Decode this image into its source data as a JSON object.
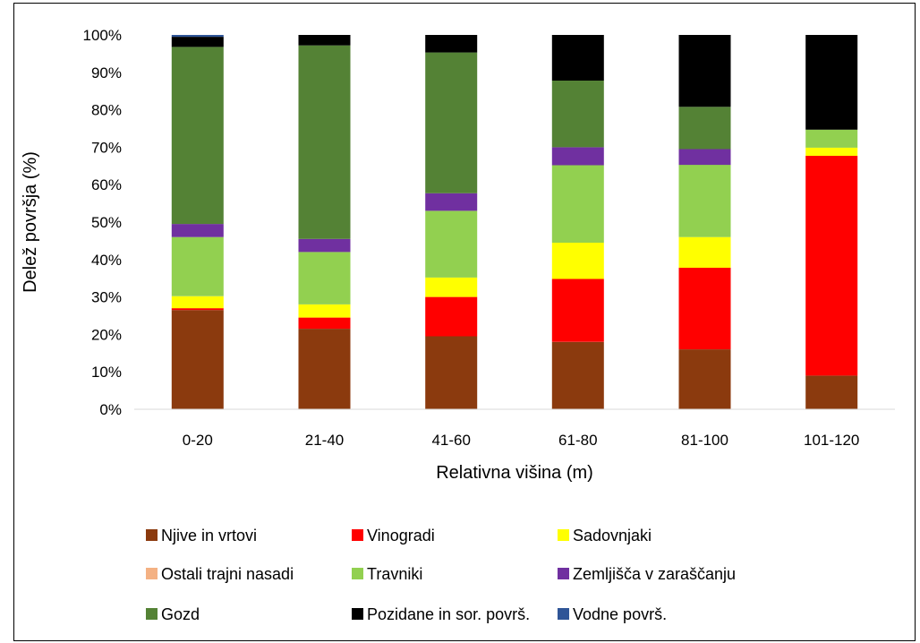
{
  "chart_data": {
    "type": "bar",
    "stacked": true,
    "percent": true,
    "title": "",
    "xlabel": "Relativna višina (m)",
    "ylabel": "Delež površja (%)",
    "ylim": [
      0,
      100
    ],
    "y_ticks": [
      "0%",
      "10%",
      "20%",
      "30%",
      "40%",
      "50%",
      "60%",
      "70%",
      "80%",
      "90%",
      "100%"
    ],
    "grid": false,
    "legend_position": "bottom",
    "categories": [
      "0-20",
      "21-40",
      "41-60",
      "61-80",
      "81-100",
      "101-120"
    ],
    "series": [
      {
        "name": "Njive in vrtovi",
        "color": "#8B3A0E",
        "values": [
          26.5,
          21.5,
          19.5,
          18.0,
          16.0,
          9.0
        ]
      },
      {
        "name": "Vinogradi",
        "color": "#FF0000",
        "values": [
          0.5,
          3.0,
          10.5,
          16.8,
          21.8,
          58.7
        ]
      },
      {
        "name": "Sadovnjaki",
        "color": "#FFFF00",
        "values": [
          3.2,
          3.5,
          5.2,
          9.7,
          8.2,
          2.2
        ]
      },
      {
        "name": "Ostali trajni nasadi",
        "color": "#F4B183",
        "values": [
          0,
          0,
          0,
          0,
          0,
          0
        ]
      },
      {
        "name": "Travniki",
        "color": "#92D050",
        "values": [
          15.8,
          14.0,
          17.8,
          20.7,
          19.3,
          4.8
        ]
      },
      {
        "name": "Zemljišča v zaraščanju",
        "color": "#7030A0",
        "values": [
          3.5,
          3.5,
          4.7,
          4.8,
          4.2,
          0
        ]
      },
      {
        "name": "Gozd",
        "color": "#548235",
        "values": [
          47.3,
          51.7,
          37.6,
          17.8,
          11.3,
          0
        ]
      },
      {
        "name": "Pozidane in sor. površ.",
        "color": "#000000",
        "values": [
          2.7,
          2.8,
          4.7,
          12.2,
          19.2,
          25.3
        ]
      },
      {
        "name": "Vodne površ.",
        "color": "#2F5597",
        "values": [
          0.5,
          0,
          0,
          0,
          0,
          0
        ]
      }
    ]
  }
}
